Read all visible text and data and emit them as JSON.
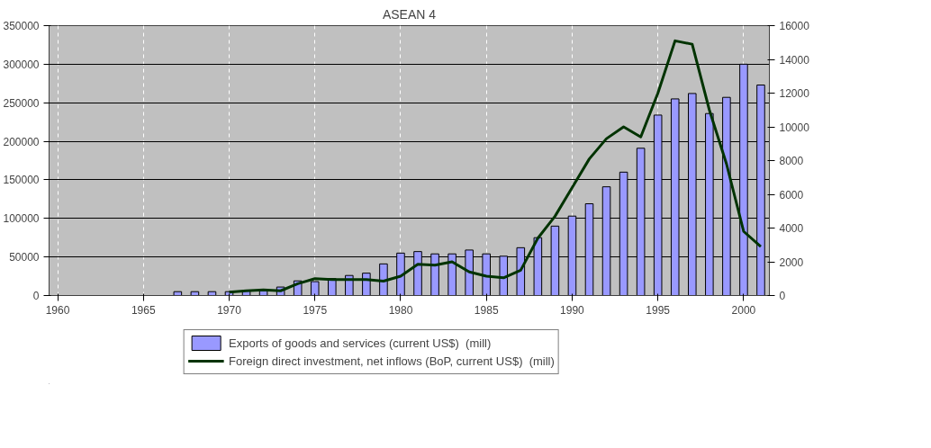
{
  "chart_data": {
    "type": "bar",
    "title": "ASEAN 4",
    "x": [
      1967,
      1968,
      1969,
      1970,
      1971,
      1972,
      1973,
      1974,
      1975,
      1976,
      1977,
      1978,
      1979,
      1980,
      1981,
      1982,
      1983,
      1984,
      1985,
      1986,
      1987,
      1988,
      1989,
      1990,
      1991,
      1992,
      1993,
      1994,
      1995,
      1996,
      1997,
      1998,
      1999,
      2000,
      2001
    ],
    "series": [
      {
        "name": "Exports of goods and services (current US$)  (mill)",
        "color": "#9999ff",
        "values": [
          5000,
          5000,
          5000,
          5000,
          6000,
          7000,
          11000,
          19000,
          18000,
          22000,
          26000,
          29000,
          41000,
          55000,
          57000,
          54000,
          54000,
          59000,
          54000,
          51000,
          62000,
          75000,
          90000,
          103000,
          119000,
          141000,
          160000,
          191000,
          234000,
          255000,
          262000,
          236000,
          257000,
          300000,
          273000
        ]
      },
      {
        "name": "Foreign direct investment, net inflows (BoP, current US$)  (mill)",
        "color": "#003300",
        "type": "line",
        "axis": "y2",
        "x": [
          1970,
          1971,
          1972,
          1973,
          1974,
          1975,
          1976,
          1977,
          1978,
          1979,
          1980,
          1981,
          1982,
          1983,
          1984,
          1985,
          1986,
          1987,
          1988,
          1989,
          1990,
          1991,
          1992,
          1993,
          1994,
          1995,
          1996,
          1997,
          1998,
          1999,
          2000,
          2001
        ],
        "values": [
          200,
          280,
          330,
          280,
          700,
          1000,
          950,
          950,
          950,
          850,
          1150,
          1850,
          1800,
          2000,
          1400,
          1150,
          1050,
          1500,
          3400,
          4700,
          6400,
          8100,
          9300,
          10000,
          9400,
          12000,
          15100,
          14900,
          11000,
          7800,
          3800,
          2900
        ]
      }
    ],
    "xlim": [
      1959.5,
      2001.5
    ],
    "xticks": [
      1960,
      1965,
      1970,
      1975,
      1980,
      1985,
      1990,
      1995,
      2000
    ],
    "ylim": [
      0,
      350000
    ],
    "yticks": [
      0,
      50000,
      100000,
      150000,
      200000,
      250000,
      300000,
      350000
    ],
    "y2lim": [
      0,
      16000
    ],
    "y2ticks": [
      0,
      2000,
      4000,
      6000,
      8000,
      10000,
      12000,
      14000,
      16000
    ],
    "grid": true,
    "legend": "bottom"
  }
}
